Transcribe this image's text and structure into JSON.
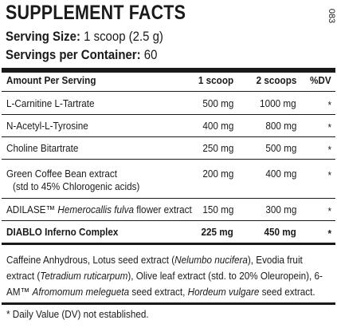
{
  "header": {
    "title": "SUPPLEMENT FACTS",
    "code": "083",
    "serving_size": {
      "label": "Serving Size:",
      "value": "1 scoop (2.5 g)"
    },
    "servings": {
      "label": "Servings per Container:",
      "value": "60"
    }
  },
  "table": {
    "columns": [
      "Amount Per Serving",
      "1 scoop",
      "2 scoops",
      "%DV"
    ],
    "rows": [
      {
        "name": [
          {
            "text": "L-Carnitine L-Tartrate",
            "italic": false
          }
        ],
        "amount_1": "500 mg",
        "amount_2": "1000 mg",
        "dv": "*",
        "bold": false
      },
      {
        "name": [
          {
            "text": "N-Acetyl-L-Tyrosine",
            "italic": false
          }
        ],
        "amount_1": "400 mg",
        "amount_2": "800 mg",
        "dv": "*",
        "bold": false
      },
      {
        "name": [
          {
            "text": "Choline Bitartrate",
            "italic": false
          }
        ],
        "amount_1": "250 mg",
        "amount_2": "500 mg",
        "dv": "*",
        "bold": false
      },
      {
        "name": [
          {
            "text": "Green Coffee Bean extract",
            "italic": false
          }
        ],
        "note": "(std to 45% Chlorogenic acids)",
        "amount_1": "200 mg",
        "amount_2": "400 mg",
        "dv": "*",
        "bold": false
      },
      {
        "name": [
          {
            "text": "ADILASE™ ",
            "italic": false
          },
          {
            "text": "Hemerocallis fulva",
            "italic": true
          },
          {
            "text": " flower extract",
            "italic": false
          }
        ],
        "amount_1": "150 mg",
        "amount_2": "300 mg",
        "dv": "*",
        "bold": false
      },
      {
        "name": [
          {
            "text": "DIABLO Inferno Complex",
            "italic": false
          }
        ],
        "amount_1": "225 mg",
        "amount_2": "450 mg",
        "dv": "*",
        "bold": true
      }
    ]
  },
  "blend": [
    {
      "text": "Caffeine Anhydrous, Lotus seed extract (",
      "italic": false
    },
    {
      "text": "Nelumbo nucifera",
      "italic": true
    },
    {
      "text": "), Evodia fruit extract (",
      "italic": false
    },
    {
      "text": "Tetradium ruticarpum",
      "italic": true
    },
    {
      "text": "), Olive leaf extract (std. to 20% Oleuropein), 6-AM™ ",
      "italic": false
    },
    {
      "text": "Afromomum melegueta",
      "italic": true
    },
    {
      "text": " seed extract, ",
      "italic": false
    },
    {
      "text": "Hordeum vulgare",
      "italic": true
    },
    {
      "text": " seed extract.",
      "italic": false
    }
  ],
  "footnote": "* Daily Value (DV) not established."
}
